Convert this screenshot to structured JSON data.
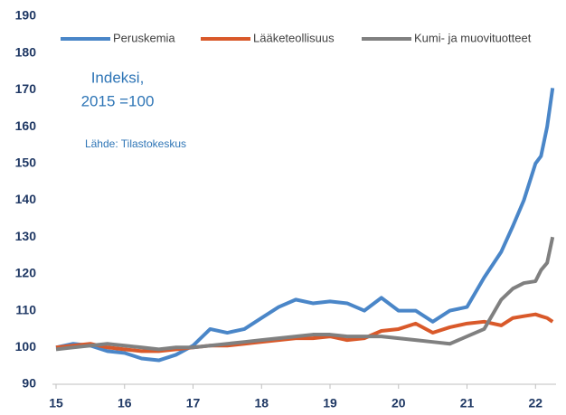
{
  "chart_data": {
    "type": "line",
    "x": [
      15,
      15.25,
      15.5,
      15.75,
      16,
      16.25,
      16.5,
      16.75,
      17,
      17.25,
      17.5,
      17.75,
      18,
      18.25,
      18.5,
      18.75,
      19,
      19.25,
      19.5,
      19.75,
      20,
      20.25,
      20.5,
      20.75,
      21,
      21.25,
      21.5,
      21.67,
      21.83,
      22,
      22.08,
      22.17,
      22.25
    ],
    "series": [
      {
        "name": "Peruskemia",
        "color": "#4a86c8",
        "values": [
          100,
          101,
          100.5,
          99,
          98.5,
          97,
          96.5,
          98,
          100.5,
          105,
          104,
          105,
          108,
          111,
          113,
          112,
          112.5,
          112,
          110,
          113.5,
          110,
          110,
          107,
          110,
          111,
          119,
          126,
          133,
          140,
          150,
          152,
          160,
          170.5
        ]
      },
      {
        "name": "Lääketeollisuus",
        "color": "#d9592a",
        "values": [
          100,
          100.5,
          101,
          100,
          99.5,
          99,
          99,
          99.5,
          100,
          100.5,
          100.5,
          101,
          101.5,
          102,
          102.5,
          102.5,
          103,
          102,
          102.5,
          104.5,
          105,
          106.5,
          104,
          105.5,
          106.5,
          107,
          106,
          108,
          108.5,
          109,
          108.5,
          108,
          107
        ]
      },
      {
        "name": "Kumi- ja muovituotteet",
        "color": "#808080",
        "values": [
          99.5,
          100,
          100.5,
          101,
          100.5,
          100,
          99.5,
          100,
          100,
          100.5,
          101,
          101.5,
          102,
          102.5,
          103,
          103.5,
          103.5,
          103,
          103,
          103,
          102.5,
          102,
          101.5,
          101,
          103,
          105,
          113,
          116,
          117.5,
          118,
          121,
          123,
          130
        ]
      }
    ],
    "annotations": [
      "Indeksi,",
      "2015 =100",
      "Lähde: Tilastokeskus"
    ],
    "xlim": [
      15,
      22.3
    ],
    "xticks": [
      15,
      16,
      17,
      18,
      19,
      20,
      21,
      22
    ],
    "ylim": [
      90,
      190
    ],
    "yticks": [
      90,
      100,
      110,
      120,
      130,
      140,
      150,
      160,
      170,
      180,
      190
    ],
    "grid": false,
    "legend": "top"
  }
}
